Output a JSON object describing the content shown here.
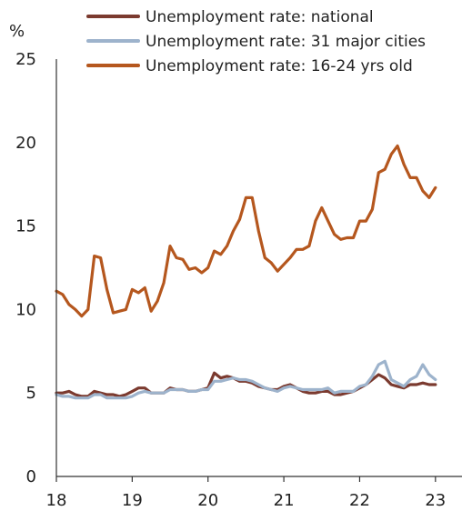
{
  "chart_data": {
    "type": "line",
    "title": "",
    "xlabel": "",
    "ylabel": "%",
    "ylim": [
      0,
      25
    ],
    "yticks": [
      0,
      5,
      10,
      15,
      20,
      25
    ],
    "xlim": [
      2018,
      2023.35
    ],
    "xticks": [
      {
        "value": 2018,
        "label": "18"
      },
      {
        "value": 2019,
        "label": "19"
      },
      {
        "value": 2020,
        "label": "20"
      },
      {
        "value": 2021,
        "label": "21"
      },
      {
        "value": 2022,
        "label": "22"
      },
      {
        "value": 2023,
        "label": "23"
      }
    ],
    "x_unit": "year (monthly observations)",
    "grid": false,
    "legend_position": "top",
    "series": [
      {
        "name": "Unemployment rate: national",
        "color": "#7b3a2f",
        "x": [
          2018.0,
          2018.083,
          2018.167,
          2018.25,
          2018.333,
          2018.417,
          2018.5,
          2018.583,
          2018.667,
          2018.75,
          2018.833,
          2018.917,
          2019.0,
          2019.083,
          2019.167,
          2019.25,
          2019.333,
          2019.417,
          2019.5,
          2019.583,
          2019.667,
          2019.75,
          2019.833,
          2019.917,
          2020.0,
          2020.083,
          2020.167,
          2020.25,
          2020.333,
          2020.417,
          2020.5,
          2020.583,
          2020.667,
          2020.75,
          2020.833,
          2020.917,
          2021.0,
          2021.083,
          2021.167,
          2021.25,
          2021.333,
          2021.417,
          2021.5,
          2021.583,
          2021.667,
          2021.75,
          2021.833,
          2021.917,
          2022.0,
          2022.083,
          2022.167,
          2022.25,
          2022.333,
          2022.417,
          2022.5,
          2022.583,
          2022.667,
          2022.75,
          2022.833,
          2022.917,
          2023.0
        ],
        "values": [
          5.0,
          5.0,
          5.1,
          4.9,
          4.8,
          4.8,
          5.1,
          5.0,
          4.9,
          4.9,
          4.8,
          4.9,
          5.1,
          5.3,
          5.3,
          5.0,
          5.0,
          5.0,
          5.3,
          5.2,
          5.2,
          5.1,
          5.1,
          5.2,
          5.3,
          6.2,
          5.9,
          6.0,
          5.9,
          5.7,
          5.7,
          5.6,
          5.4,
          5.3,
          5.2,
          5.2,
          5.4,
          5.5,
          5.3,
          5.1,
          5.0,
          5.0,
          5.1,
          5.1,
          4.9,
          4.9,
          5.0,
          5.1,
          5.3,
          5.5,
          5.8,
          6.1,
          5.9,
          5.5,
          5.4,
          5.3,
          5.5,
          5.5,
          5.6,
          5.5,
          5.5
        ]
      },
      {
        "name": "Unemployment rate: 31 major cities",
        "color": "#9db3cc",
        "x": [
          2018.0,
          2018.083,
          2018.167,
          2018.25,
          2018.333,
          2018.417,
          2018.5,
          2018.583,
          2018.667,
          2018.75,
          2018.833,
          2018.917,
          2019.0,
          2019.083,
          2019.167,
          2019.25,
          2019.333,
          2019.417,
          2019.5,
          2019.583,
          2019.667,
          2019.75,
          2019.833,
          2019.917,
          2020.0,
          2020.083,
          2020.167,
          2020.25,
          2020.333,
          2020.417,
          2020.5,
          2020.583,
          2020.667,
          2020.75,
          2020.833,
          2020.917,
          2021.0,
          2021.083,
          2021.167,
          2021.25,
          2021.333,
          2021.417,
          2021.5,
          2021.583,
          2021.667,
          2021.75,
          2021.833,
          2021.917,
          2022.0,
          2022.083,
          2022.167,
          2022.25,
          2022.333,
          2022.417,
          2022.5,
          2022.583,
          2022.667,
          2022.75,
          2022.833,
          2022.917,
          2023.0
        ],
        "values": [
          4.9,
          4.8,
          4.8,
          4.7,
          4.7,
          4.7,
          4.9,
          4.9,
          4.7,
          4.7,
          4.7,
          4.7,
          4.8,
          5.0,
          5.1,
          5.0,
          5.0,
          5.0,
          5.2,
          5.2,
          5.2,
          5.1,
          5.1,
          5.2,
          5.2,
          5.7,
          5.7,
          5.8,
          5.9,
          5.8,
          5.8,
          5.7,
          5.5,
          5.3,
          5.2,
          5.1,
          5.3,
          5.4,
          5.3,
          5.2,
          5.2,
          5.2,
          5.2,
          5.3,
          5.0,
          5.1,
          5.1,
          5.1,
          5.4,
          5.5,
          6.0,
          6.7,
          6.9,
          5.8,
          5.6,
          5.4,
          5.8,
          6.0,
          6.7,
          6.1,
          5.8
        ]
      },
      {
        "name": "Unemployment rate: 16-24 yrs old",
        "color": "#b5571e",
        "x": [
          2018.0,
          2018.083,
          2018.167,
          2018.25,
          2018.333,
          2018.417,
          2018.5,
          2018.583,
          2018.667,
          2018.75,
          2018.833,
          2018.917,
          2019.0,
          2019.083,
          2019.167,
          2019.25,
          2019.333,
          2019.417,
          2019.5,
          2019.583,
          2019.667,
          2019.75,
          2019.833,
          2019.917,
          2020.0,
          2020.083,
          2020.167,
          2020.25,
          2020.333,
          2020.417,
          2020.5,
          2020.583,
          2020.667,
          2020.75,
          2020.833,
          2020.917,
          2021.0,
          2021.083,
          2021.167,
          2021.25,
          2021.333,
          2021.417,
          2021.5,
          2021.583,
          2021.667,
          2021.75,
          2021.833,
          2021.917,
          2022.0,
          2022.083,
          2022.167,
          2022.25,
          2022.333,
          2022.417,
          2022.5,
          2022.583,
          2022.667,
          2022.75,
          2022.833,
          2022.917,
          2023.0
        ],
        "values": [
          11.1,
          10.9,
          10.3,
          10.0,
          9.6,
          10.0,
          13.2,
          13.1,
          11.2,
          9.8,
          9.9,
          10.0,
          11.2,
          11.0,
          11.3,
          9.9,
          10.5,
          11.6,
          13.8,
          13.1,
          13.0,
          12.4,
          12.5,
          12.2,
          12.5,
          13.5,
          13.3,
          13.8,
          14.7,
          15.4,
          16.7,
          16.7,
          14.7,
          13.1,
          12.8,
          12.3,
          12.7,
          13.1,
          13.6,
          13.6,
          13.8,
          15.3,
          16.1,
          15.3,
          14.5,
          14.2,
          14.3,
          14.3,
          15.3,
          15.3,
          16.0,
          18.2,
          18.4,
          19.3,
          19.8,
          18.7,
          17.9,
          17.9,
          17.1,
          16.7,
          17.3
        ]
      }
    ]
  }
}
